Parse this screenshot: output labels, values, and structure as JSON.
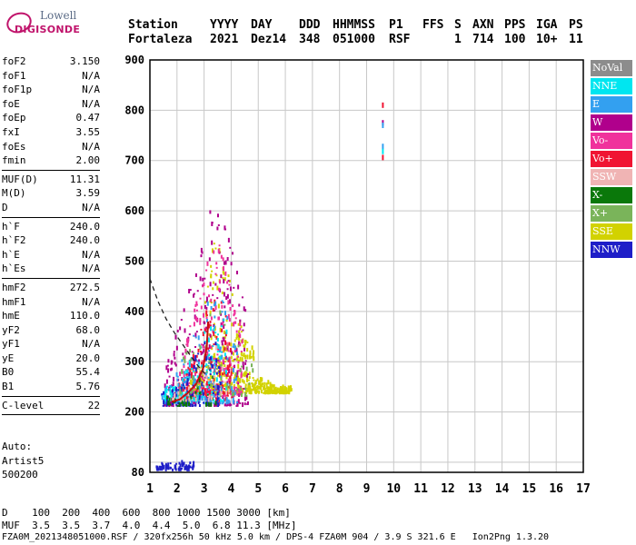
{
  "logo": {
    "line1": "Lowell",
    "line2": "DIGISONDE"
  },
  "header": {
    "labels": [
      "Station",
      "YYYY",
      "DAY",
      "DDD",
      "HHMMSS",
      "P1",
      "FFS",
      "S",
      "AXN",
      "PPS",
      "IGA",
      "PS"
    ],
    "values": [
      "Fortaleza",
      "2021",
      "Dez14",
      "348",
      "051000",
      "RSF",
      "",
      "1",
      "714",
      "100",
      "10+",
      "11"
    ]
  },
  "params": {
    "group1": [
      {
        "k": "foF2",
        "v": "3.150"
      },
      {
        "k": "foF1",
        "v": "N/A"
      },
      {
        "k": "foF1p",
        "v": "N/A"
      },
      {
        "k": "foE",
        "v": "N/A"
      },
      {
        "k": "foEp",
        "v": "0.47"
      },
      {
        "k": "fxI",
        "v": "3.55"
      },
      {
        "k": "foEs",
        "v": "N/A"
      },
      {
        "k": "fmin",
        "v": "2.00"
      }
    ],
    "group2": [
      {
        "k": "MUF(D)",
        "v": "11.31"
      },
      {
        "k": "M(D)",
        "v": "3.59"
      },
      {
        "k": "D",
        "v": "N/A"
      }
    ],
    "group3": [
      {
        "k": "h`F",
        "v": "240.0"
      },
      {
        "k": "h`F2",
        "v": "240.0"
      },
      {
        "k": "h`E",
        "v": "N/A"
      },
      {
        "k": "h`Es",
        "v": "N/A"
      }
    ],
    "group4": [
      {
        "k": "hmF2",
        "v": "272.5"
      },
      {
        "k": "hmF1",
        "v": "N/A"
      },
      {
        "k": "hmE",
        "v": "110.0"
      },
      {
        "k": "yF2",
        "v": "68.0"
      },
      {
        "k": "yF1",
        "v": "N/A"
      },
      {
        "k": "yE",
        "v": "20.0"
      },
      {
        "k": "B0",
        "v": "55.4"
      },
      {
        "k": "B1",
        "v": "5.76"
      }
    ],
    "group5": [
      {
        "k": "C-level",
        "v": "22"
      }
    ],
    "auto": [
      "Auto:",
      "Artist5",
      "500200"
    ]
  },
  "legend": [
    {
      "label": "NoVal",
      "color": "#8c8c8c"
    },
    {
      "label": "NNE",
      "color": "#00e6f0"
    },
    {
      "label": "E",
      "color": "#33a0f0"
    },
    {
      "label": "W",
      "color": "#b0008c"
    },
    {
      "label": "Vo-",
      "color": "#f0329c"
    },
    {
      "label": "Vo+",
      "color": "#f01432"
    },
    {
      "label": "SSW",
      "color": "#f0b4b4"
    },
    {
      "label": "X-",
      "color": "#0a780a"
    },
    {
      "label": "X+",
      "color": "#7ab45a"
    },
    {
      "label": "SSE",
      "color": "#d2d200"
    },
    {
      "label": "NNW",
      "color": "#1e1ec8"
    }
  ],
  "footer": {
    "d_label": "D",
    "d_values": "100  200  400  600  800 1000 1500 3000 [km]",
    "muf_label": "MUF",
    "muf_values": "3.5  3.5  3.7  4.0  4.4  5.0  6.8 11.3 [MHz]",
    "file_line": "FZA0M_2021348051000.RSF / 320fx256h 50 kHz 5.0 km / DPS-4 FZA0M 904 / 3.9 S 321.6 E   Ion2Png 1.3.20"
  },
  "chart_data": {
    "type": "scatter",
    "xlim": [
      1,
      17
    ],
    "ylim": [
      80,
      900
    ],
    "xticks": [
      "1",
      "2",
      "3",
      "4",
      "5",
      "6",
      "7",
      "8",
      "9",
      "10",
      "11",
      "12",
      "13",
      "14",
      "15",
      "16",
      "17"
    ],
    "yticks": [
      "80",
      "200",
      "300",
      "400",
      "500",
      "600",
      "700",
      "800",
      "900"
    ],
    "grid": true,
    "trace_f2_x": [
      1.8,
      2.1,
      2.4,
      2.7,
      2.95,
      3.1,
      3.15
    ],
    "trace_f2_y": [
      220,
      225,
      238,
      255,
      285,
      330,
      380
    ],
    "profile_x": [
      1.0,
      1.3,
      1.6,
      1.9,
      2.2,
      2.5,
      2.8,
      3.0,
      3.15
    ],
    "profile_y": [
      465,
      420,
      385,
      358,
      335,
      312,
      290,
      278,
      272
    ],
    "echo_clusters": [
      {
        "series": "SSE",
        "color": "#d2d200",
        "x": [
          2.4,
          6.2
        ],
        "y": [
          235,
          310
        ],
        "count": 420
      },
      {
        "series": "SSE",
        "color": "#d2d200",
        "x": [
          3.0,
          4.8
        ],
        "y": [
          300,
          570
        ],
        "count": 120
      },
      {
        "series": "W",
        "color": "#b0008c",
        "x": [
          1.5,
          4.6
        ],
        "y": [
          210,
          640
        ],
        "count": 260
      },
      {
        "series": "Vo-",
        "color": "#f0329c",
        "x": [
          2.0,
          4.4
        ],
        "y": [
          230,
          560
        ],
        "count": 200
      },
      {
        "series": "Vo+",
        "color": "#f01432",
        "x": [
          2.0,
          4.0
        ],
        "y": [
          220,
          450
        ],
        "count": 180
      },
      {
        "series": "E",
        "color": "#33a0f0",
        "x": [
          1.4,
          4.2
        ],
        "y": [
          215,
          450
        ],
        "count": 160
      },
      {
        "series": "NNE",
        "color": "#00e6f0",
        "x": [
          1.5,
          3.8
        ],
        "y": [
          220,
          420
        ],
        "count": 120
      },
      {
        "series": "NNW",
        "color": "#1e1ec8",
        "x": [
          1.4,
          3.6
        ],
        "y": [
          210,
          420
        ],
        "count": 90
      },
      {
        "series": "X-",
        "color": "#0a780a",
        "x": [
          1.6,
          3.4
        ],
        "y": [
          210,
          320
        ],
        "count": 40
      },
      {
        "series": "X+",
        "color": "#7ab45a",
        "x": [
          2.0,
          4.8
        ],
        "y": [
          230,
          420
        ],
        "count": 50
      },
      {
        "series": "SSW",
        "color": "#f0b4b4",
        "x": [
          1.8,
          4.0
        ],
        "y": [
          220,
          380
        ],
        "count": 40
      },
      {
        "series": "low-echo",
        "color": "#1e1ec8",
        "x": [
          1.2,
          2.6
        ],
        "y": [
          82,
          98
        ],
        "count": 60
      }
    ],
    "isolated_marks": [
      {
        "x": 9.6,
        "y": 810,
        "color": "#f01432"
      },
      {
        "x": 9.6,
        "y": 775,
        "color": "#b0008c"
      },
      {
        "x": 9.6,
        "y": 770,
        "color": "#33a0f0"
      },
      {
        "x": 9.6,
        "y": 728,
        "color": "#33a0f0"
      },
      {
        "x": 9.6,
        "y": 718,
        "color": "#00e6f0"
      },
      {
        "x": 9.6,
        "y": 706,
        "color": "#f01432"
      }
    ]
  }
}
